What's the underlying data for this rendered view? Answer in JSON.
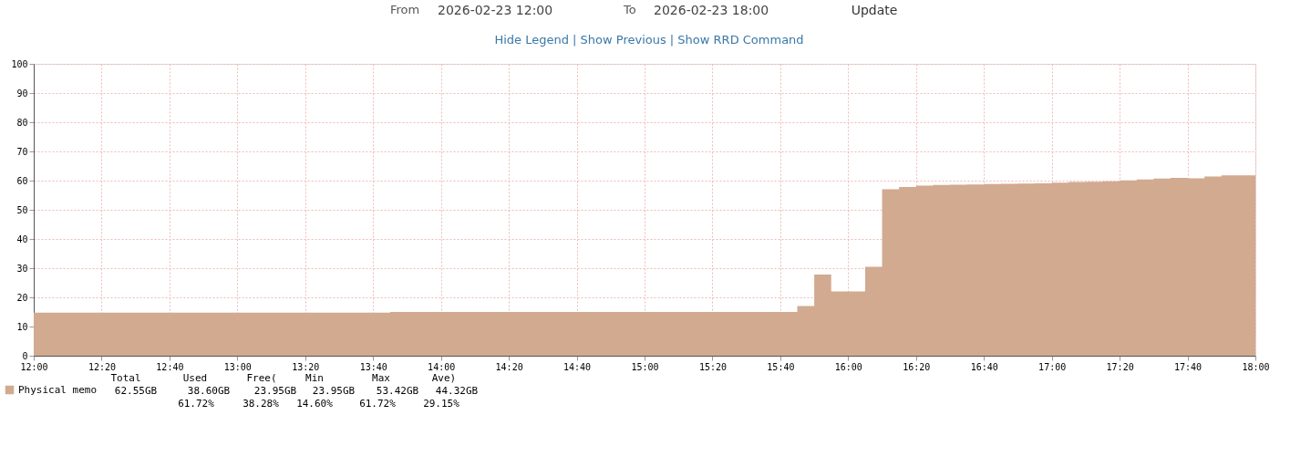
{
  "chart_data": {
    "type": "area",
    "x": [
      "2026-02-23T12:00",
      "2026-02-23T13:45",
      "2026-02-23T13:45",
      "2026-02-23T15:45",
      "2026-02-23T15:45",
      "2026-02-23T15:50",
      "2026-02-23T15:50",
      "2026-02-23T15:55",
      "2026-02-23T15:55",
      "2026-02-23T16:05",
      "2026-02-23T16:05",
      "2026-02-23T16:10",
      "2026-02-23T16:10",
      "2026-02-23T16:15",
      "2026-02-23T16:15",
      "2026-02-23T16:20",
      "2026-02-23T16:20",
      "2026-02-23T16:25",
      "2026-02-23T16:25",
      "2026-02-23T16:30",
      "2026-02-23T16:30",
      "2026-02-23T16:35",
      "2026-02-23T16:35",
      "2026-02-23T16:40",
      "2026-02-23T16:40",
      "2026-02-23T16:45",
      "2026-02-23T16:45",
      "2026-02-23T16:50",
      "2026-02-23T16:50",
      "2026-02-23T16:55",
      "2026-02-23T16:55",
      "2026-02-23T17:00",
      "2026-02-23T17:00",
      "2026-02-23T17:05",
      "2026-02-23T17:05",
      "2026-02-23T17:10",
      "2026-02-23T17:10",
      "2026-02-23T17:15",
      "2026-02-23T17:15",
      "2026-02-23T17:20",
      "2026-02-23T17:20",
      "2026-02-23T17:25",
      "2026-02-23T17:25",
      "2026-02-23T17:30",
      "2026-02-23T17:30",
      "2026-02-23T17:35",
      "2026-02-23T17:35",
      "2026-02-23T17:40",
      "2026-02-23T17:40",
      "2026-02-23T17:45",
      "2026-02-23T17:45",
      "2026-02-23T17:50",
      "2026-02-23T17:50",
      "2026-02-23T18:00"
    ],
    "series": [
      {
        "name": "Physical memo",
        "color": "#d1aa90",
        "values": [
          14.8,
          14.8,
          15.0,
          15.0,
          17.0,
          17.0,
          27.8,
          27.8,
          22.0,
          22.0,
          30.5,
          30.5,
          57.0,
          57.0,
          57.8,
          57.8,
          58.3,
          58.3,
          58.5,
          58.5,
          58.6,
          58.6,
          58.7,
          58.7,
          58.8,
          58.8,
          58.9,
          58.9,
          59.0,
          59.0,
          59.1,
          59.1,
          59.3,
          59.3,
          59.5,
          59.5,
          59.6,
          59.6,
          59.8,
          59.8,
          60.1,
          60.1,
          60.4,
          60.4,
          60.7,
          60.7,
          60.9,
          60.9,
          60.8,
          60.8,
          61.4,
          61.4,
          61.8,
          61.8
        ]
      }
    ],
    "xlim": [
      "2026-02-23T12:00",
      "2026-02-23T18:00"
    ],
    "xticks": [
      {
        "value": "2026-02-23T12:00",
        "label": "12:00"
      },
      {
        "value": "2026-02-23T12:20",
        "label": "12:20"
      },
      {
        "value": "2026-02-23T12:40",
        "label": "12:40"
      },
      {
        "value": "2026-02-23T13:00",
        "label": "13:00"
      },
      {
        "value": "2026-02-23T13:20",
        "label": "13:20"
      },
      {
        "value": "2026-02-23T13:40",
        "label": "13:40"
      },
      {
        "value": "2026-02-23T14:00",
        "label": "14:00"
      },
      {
        "value": "2026-02-23T14:20",
        "label": "14:20"
      },
      {
        "value": "2026-02-23T14:40",
        "label": "14:40"
      },
      {
        "value": "2026-02-23T15:00",
        "label": "15:00"
      },
      {
        "value": "2026-02-23T15:20",
        "label": "15:20"
      },
      {
        "value": "2026-02-23T15:40",
        "label": "15:40"
      },
      {
        "value": "2026-02-23T16:00",
        "label": "16:00"
      },
      {
        "value": "2026-02-23T16:20",
        "label": "16:20"
      },
      {
        "value": "2026-02-23T16:40",
        "label": "16:40"
      },
      {
        "value": "2026-02-23T17:00",
        "label": "17:00"
      },
      {
        "value": "2026-02-23T17:20",
        "label": "17:20"
      },
      {
        "value": "2026-02-23T17:40",
        "label": "17:40"
      },
      {
        "value": "2026-02-23T18:00",
        "label": "18:00"
      }
    ],
    "ylim": [
      0,
      100
    ],
    "yticks": [
      0,
      10,
      20,
      30,
      40,
      50,
      60,
      70,
      80,
      90,
      100
    ],
    "grid": true,
    "legend": "bottom left",
    "annotations": [
      "From",
      "2026-02-23 12:00",
      "To",
      "2026-02-23 18:00",
      "Update",
      "Hide Legend | Show Previous | Show RRD Command",
      "Total",
      "Used",
      "Free(",
      "Min",
      "Max",
      "Ave)",
      "62.55GB",
      "38.60GB",
      "23.95GB",
      "23.95GB",
      "53.42GB",
      "44.32GB",
      "61.72%",
      "38.28%",
      "14.60%",
      "61.72%",
      "29.15%"
    ]
  }
}
